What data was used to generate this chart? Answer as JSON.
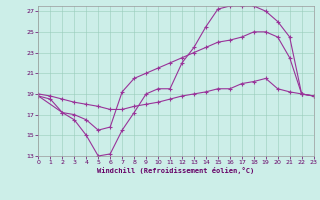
{
  "xlabel": "Windchill (Refroidissement éolien,°C)",
  "line_color": "#993399",
  "bg_color": "#cceee8",
  "xlim": [
    0,
    23
  ],
  "ylim": [
    13,
    27.5
  ],
  "xticks": [
    0,
    1,
    2,
    3,
    4,
    5,
    6,
    7,
    8,
    9,
    10,
    11,
    12,
    13,
    14,
    15,
    16,
    17,
    18,
    19,
    20,
    21,
    22,
    23
  ],
  "yticks": [
    13,
    15,
    17,
    19,
    21,
    23,
    25,
    27
  ],
  "line1_x": [
    0,
    1,
    2,
    3,
    4,
    5,
    6,
    7,
    8,
    9,
    10,
    11,
    12,
    13,
    14,
    15,
    16,
    17,
    18,
    19,
    20,
    21,
    22,
    23
  ],
  "line1_y": [
    18.8,
    18.5,
    17.2,
    16.5,
    15.0,
    13.0,
    13.2,
    15.5,
    17.2,
    19.0,
    19.5,
    19.5,
    22.0,
    23.5,
    25.5,
    27.2,
    27.5,
    27.5,
    27.5,
    27.0,
    26.0,
    24.5,
    19.0,
    18.8
  ],
  "line2_x": [
    0,
    2,
    3,
    4,
    5,
    6,
    7,
    8,
    9,
    10,
    11,
    12,
    13,
    14,
    15,
    16,
    17,
    18,
    19,
    20,
    21,
    22,
    23
  ],
  "line2_y": [
    18.8,
    17.2,
    17.0,
    16.5,
    15.5,
    15.8,
    19.2,
    20.5,
    21.0,
    21.5,
    22.0,
    22.5,
    23.0,
    23.5,
    24.0,
    24.2,
    24.5,
    25.0,
    25.0,
    24.5,
    22.5,
    19.0,
    18.8
  ],
  "line3_x": [
    0,
    1,
    2,
    3,
    4,
    5,
    6,
    7,
    8,
    9,
    10,
    11,
    12,
    13,
    14,
    15,
    16,
    17,
    18,
    19,
    20,
    21,
    22,
    23
  ],
  "line3_y": [
    19.0,
    18.8,
    18.5,
    18.2,
    18.0,
    17.8,
    17.5,
    17.5,
    17.8,
    18.0,
    18.2,
    18.5,
    18.8,
    19.0,
    19.2,
    19.5,
    19.5,
    20.0,
    20.2,
    20.5,
    19.5,
    19.2,
    19.0,
    18.8
  ]
}
